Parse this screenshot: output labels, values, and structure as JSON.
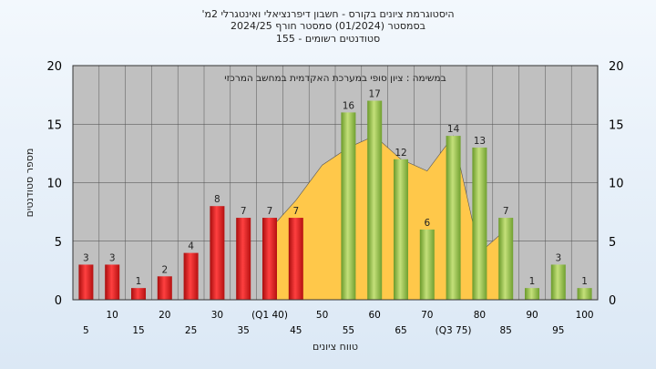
{
  "title_lines": [
    "'היסטוגרמת ציונים בקורס - חשבון דיפרנציאלי ואינטגרלי 2מ",
    "בסמסטר  (01/2024)  סמסטר חורף  2024/25",
    "סטודנטים רשומים - 155"
  ],
  "colors": {
    "plot_bg": "#c0c0c0",
    "red_bar": "#e02020",
    "green_bar": "#8fc040",
    "curve_fill": "#ffc84a"
  },
  "chart_data": {
    "type": "bar",
    "subtitle": "במשימה : ציון סופי במערכת האקדמית במחשב המרכזי",
    "xlabel": "טווח ציונים",
    "ylabel": "מספר סטודנטים",
    "ylim": [
      0,
      20
    ],
    "yticks": [
      0,
      5,
      10,
      15,
      20
    ],
    "grid": true,
    "categories": [
      "5",
      "10",
      "15",
      "20",
      "25",
      "30",
      "35",
      "40",
      "45",
      "50",
      "55",
      "60",
      "65",
      "70",
      "75",
      "80",
      "85",
      "90",
      "95",
      "100"
    ],
    "category_labels": [
      "5",
      "10",
      "15",
      "20",
      "25",
      "30",
      "35",
      "(Q1 40)",
      "45",
      "50",
      "55",
      "60",
      "65",
      "70",
      "(Q3 75)",
      "80",
      "85",
      "90",
      "95",
      "100"
    ],
    "values": [
      3,
      3,
      1,
      2,
      4,
      8,
      7,
      7,
      7,
      0,
      16,
      17,
      12,
      6,
      14,
      13,
      7,
      1,
      3,
      1
    ],
    "bar_colors": [
      "red",
      "red",
      "red",
      "red",
      "red",
      "red",
      "red",
      "red",
      "red",
      "red",
      "green",
      "green",
      "green",
      "green",
      "green",
      "green",
      "green",
      "green",
      "green",
      "green"
    ],
    "curve": [
      {
        "x": "40",
        "y": 6
      },
      {
        "x": "45",
        "y": 8.5
      },
      {
        "x": "50",
        "y": 11.5
      },
      {
        "x": "55",
        "y": 13
      },
      {
        "x": "60",
        "y": 14
      },
      {
        "x": "65",
        "y": 12
      },
      {
        "x": "70",
        "y": 11
      },
      {
        "x": "75",
        "y": 14
      },
      {
        "x": "80",
        "y": 4
      },
      {
        "x": "85",
        "y": 6
      }
    ]
  }
}
